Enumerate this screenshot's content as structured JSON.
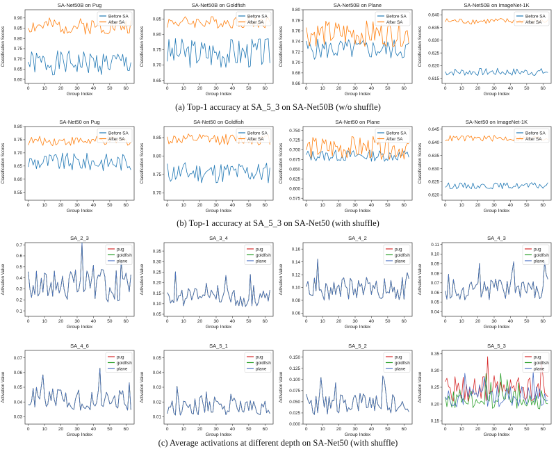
{
  "captions": {
    "a": "(a) Top-1 accuracy at SA_5_3 on SA-Net50B (w/o shuffle)",
    "b": "(b) Top-1 accuracy at SA_5_3 on SA-Net50 (with shuffle)",
    "c": "(c) Average activations at different depth on SA-Net50 (with shuffle)"
  },
  "colors": {
    "before": "#1f77b4",
    "after": "#ff7f0e",
    "pug": "#d62728",
    "goldfish": "#2ca02c",
    "plane": "#4a6fc4"
  },
  "chart_data": [
    {
      "id": "a1",
      "type": "line",
      "title": "SA-Net50B on Pug",
      "xlabel": "Group Index",
      "ylabel": "Classification Scores",
      "xlim": [
        -2,
        65
      ],
      "ylim": [
        0.58,
        0.94
      ],
      "xticks": [
        0,
        10,
        20,
        30,
        40,
        50,
        60
      ],
      "yticks": [
        0.6,
        0.65,
        0.7,
        0.75,
        0.8,
        0.85,
        0.9
      ],
      "ydec": 2,
      "legend": "top-right",
      "series": [
        {
          "name": "Before SA",
          "color": "#1f77b4",
          "gen": [
            0.68,
            0.06,
            1
          ]
        },
        {
          "name": "After SA",
          "color": "#ff7f0e",
          "gen": [
            0.86,
            0.04,
            2
          ]
        }
      ]
    },
    {
      "id": "a2",
      "type": "line",
      "title": "SA-Net50B on Goldfish",
      "xlabel": "Group Index",
      "ylabel": "Classification Scores",
      "xlim": [
        -2,
        65
      ],
      "ylim": [
        0.64,
        0.88
      ],
      "xticks": [
        0,
        10,
        20,
        30,
        40,
        50,
        60
      ],
      "yticks": [
        0.65,
        0.7,
        0.75,
        0.8,
        0.85
      ],
      "ydec": 2,
      "legend": "top-right",
      "series": [
        {
          "name": "Before SA",
          "color": "#1f77b4",
          "gen": [
            0.74,
            0.05,
            3
          ]
        },
        {
          "name": "After SA",
          "color": "#ff7f0e",
          "gen": [
            0.84,
            0.02,
            4
          ]
        }
      ]
    },
    {
      "id": "a3",
      "type": "line",
      "title": "SA-Net50B on Plane",
      "xlabel": "Group Index",
      "ylabel": "Classification Scores",
      "xlim": [
        -2,
        65
      ],
      "ylim": [
        0.66,
        0.8
      ],
      "xticks": [
        0,
        10,
        20,
        30,
        40,
        50,
        60
      ],
      "yticks": [
        0.66,
        0.68,
        0.7,
        0.72,
        0.74,
        0.76,
        0.78,
        0.8
      ],
      "ydec": 2,
      "legend": "top-right",
      "series": [
        {
          "name": "Before SA",
          "color": "#1f77b4",
          "gen": [
            0.725,
            0.02,
            5
          ]
        },
        {
          "name": "After SA",
          "color": "#ff7f0e",
          "gen": [
            0.755,
            0.025,
            6
          ]
        }
      ]
    },
    {
      "id": "a4",
      "type": "line",
      "title": "SA-Net50B on ImageNet-1K",
      "xlabel": "Group Index",
      "ylabel": "Classification Scores",
      "xlim": [
        -2,
        65
      ],
      "ylim": [
        0.613,
        0.642
      ],
      "xticks": [
        0,
        10,
        20,
        30,
        40,
        50,
        60
      ],
      "yticks": [
        0.615,
        0.62,
        0.625,
        0.63,
        0.635,
        0.64
      ],
      "ydec": 3,
      "legend": "top-right",
      "series": [
        {
          "name": "Before SA",
          "color": "#1f77b4",
          "gen": [
            0.6175,
            0.0015,
            7
          ]
        },
        {
          "name": "After SA",
          "color": "#ff7f0e",
          "gen": [
            0.6375,
            0.0012,
            8
          ]
        }
      ]
    },
    {
      "id": "b1",
      "type": "line",
      "title": "SA-Net50 on Pug",
      "xlabel": "Group Index",
      "ylabel": "Classification Scores",
      "xlim": [
        -2,
        65
      ],
      "ylim": [
        0.52,
        0.8
      ],
      "xticks": [
        0,
        10,
        20,
        30,
        40,
        50,
        60
      ],
      "yticks": [
        0.55,
        0.6,
        0.65,
        0.7,
        0.75,
        0.8
      ],
      "ydec": 2,
      "legend": "top-right",
      "series": [
        {
          "name": "Before SA",
          "color": "#1f77b4",
          "gen": [
            0.665,
            0.035,
            9
          ]
        },
        {
          "name": "After SA",
          "color": "#ff7f0e",
          "gen": [
            0.745,
            0.018,
            10
          ]
        }
      ]
    },
    {
      "id": "b2",
      "type": "line",
      "title": "SA-Net50 on Goldfish",
      "xlabel": "Group Index",
      "ylabel": "Classification Scores",
      "xlim": [
        -2,
        65
      ],
      "ylim": [
        0.68,
        0.88
      ],
      "xticks": [
        0,
        10,
        20,
        30,
        40,
        50,
        60
      ],
      "yticks": [
        0.7,
        0.75,
        0.8,
        0.85
      ],
      "ydec": 2,
      "legend": "top-right",
      "series": [
        {
          "name": "Before SA",
          "color": "#1f77b4",
          "gen": [
            0.755,
            0.03,
            11
          ]
        },
        {
          "name": "After SA",
          "color": "#ff7f0e",
          "gen": [
            0.845,
            0.015,
            12
          ]
        }
      ]
    },
    {
      "id": "b3",
      "type": "line",
      "title": "SA-Net50 on Plane",
      "xlabel": "Group Index",
      "ylabel": "Classification Scores",
      "xlim": [
        -2,
        65
      ],
      "ylim": [
        0.57,
        0.76
      ],
      "xticks": [
        0,
        10,
        20,
        30,
        40,
        50,
        60
      ],
      "yticks": [
        0.575,
        0.6,
        0.625,
        0.65,
        0.675,
        0.7,
        0.725,
        0.75
      ],
      "ydec": 3,
      "legend": "top-right",
      "series": [
        {
          "name": "Before SA",
          "color": "#1f77b4",
          "gen": [
            0.685,
            0.015,
            13
          ]
        },
        {
          "name": "After SA",
          "color": "#ff7f0e",
          "gen": [
            0.705,
            0.03,
            14
          ]
        }
      ]
    },
    {
      "id": "b4",
      "type": "line",
      "title": "SA-Net50 on ImageNet-1K",
      "xlabel": "Group Index",
      "ylabel": "Classification Scores",
      "xlim": [
        -2,
        65
      ],
      "ylim": [
        0.618,
        0.646
      ],
      "xticks": [
        0,
        10,
        20,
        30,
        40,
        50,
        60
      ],
      "yticks": [
        0.62,
        0.625,
        0.63,
        0.635,
        0.64,
        0.645
      ],
      "ydec": 3,
      "legend": "top-right",
      "series": [
        {
          "name": "Before SA",
          "color": "#1f77b4",
          "gen": [
            0.6235,
            0.0012,
            15
          ]
        },
        {
          "name": "After SA",
          "color": "#ff7f0e",
          "gen": [
            0.6415,
            0.0012,
            16
          ]
        }
      ]
    },
    {
      "id": "c1",
      "type": "line",
      "title": "SA_2_3",
      "xlabel": "Group Index",
      "ylabel": "Activation Value",
      "xlim": [
        -2,
        65
      ],
      "ylim": [
        0.05,
        0.72
      ],
      "xticks": [
        0,
        10,
        20,
        30,
        40,
        50,
        60
      ],
      "yticks": [
        0.1,
        0.2,
        0.3,
        0.4,
        0.5,
        0.6,
        0.7
      ],
      "ydec": 1,
      "legend": "top-right",
      "series": [
        {
          "name": "pug",
          "color": "#d62728",
          "gen": [
            0.33,
            0.15,
            17,
            1
          ]
        },
        {
          "name": "goldfish",
          "color": "#2ca02c",
          "gen": [
            0.33,
            0.15,
            17,
            1
          ]
        },
        {
          "name": "plane",
          "color": "#4a6fc4",
          "gen": [
            0.33,
            0.15,
            17,
            1
          ]
        }
      ]
    },
    {
      "id": "c2",
      "type": "line",
      "title": "SA_3_4",
      "xlabel": "Group Index",
      "ylabel": "Activation Value",
      "xlim": [
        -2,
        65
      ],
      "ylim": [
        0.04,
        0.39
      ],
      "xticks": [
        0,
        10,
        20,
        30,
        40,
        50,
        60
      ],
      "yticks": [
        0.05,
        0.1,
        0.15,
        0.2,
        0.25,
        0.3,
        0.35
      ],
      "ydec": 2,
      "legend": "top-right",
      "series": [
        {
          "name": "pug",
          "color": "#d62728",
          "gen": [
            0.13,
            0.045,
            18,
            0.4
          ]
        },
        {
          "name": "goldfish",
          "color": "#2ca02c",
          "gen": [
            0.13,
            0.045,
            18,
            0.4
          ]
        },
        {
          "name": "plane",
          "color": "#4a6fc4",
          "gen": [
            0.13,
            0.045,
            18,
            0.4
          ]
        }
      ]
    },
    {
      "id": "c3",
      "type": "line",
      "title": "SA_4_2",
      "xlabel": "Group Index",
      "ylabel": "Activation Value",
      "xlim": [
        -2,
        65
      ],
      "ylim": [
        0.055,
        0.17
      ],
      "xticks": [
        0,
        10,
        20,
        30,
        40,
        50,
        60
      ],
      "yticks": [
        0.06,
        0.08,
        0.1,
        0.12,
        0.14,
        0.16
      ],
      "ydec": 2,
      "legend": "top-right",
      "series": [
        {
          "name": "pug",
          "color": "#d62728",
          "gen": [
            0.098,
            0.018,
            19,
            0.3
          ]
        },
        {
          "name": "goldfish",
          "color": "#2ca02c",
          "gen": [
            0.098,
            0.018,
            19,
            0.3
          ]
        },
        {
          "name": "plane",
          "color": "#4a6fc4",
          "gen": [
            0.098,
            0.018,
            19,
            0.3
          ]
        }
      ]
    },
    {
      "id": "c4",
      "type": "line",
      "title": "SA_4_3",
      "xlabel": "Group Index",
      "ylabel": "Activation Value",
      "xlim": [
        -2,
        65
      ],
      "ylim": [
        0.035,
        0.112
      ],
      "xticks": [
        0,
        10,
        20,
        30,
        40,
        50,
        60
      ],
      "yticks": [
        0.04,
        0.05,
        0.06,
        0.07,
        0.08,
        0.09,
        0.1,
        0.11
      ],
      "ydec": 2,
      "legend": "top-right",
      "series": [
        {
          "name": "pug",
          "color": "#d62728",
          "gen": [
            0.063,
            0.011,
            20,
            0.3
          ]
        },
        {
          "name": "goldfish",
          "color": "#2ca02c",
          "gen": [
            0.063,
            0.011,
            20,
            0.3
          ]
        },
        {
          "name": "plane",
          "color": "#4a6fc4",
          "gen": [
            0.063,
            0.011,
            20,
            0.3
          ]
        }
      ]
    },
    {
      "id": "d1",
      "type": "line",
      "title": "SA_4_6",
      "xlabel": "Group Index",
      "ylabel": "Activation Value",
      "xlim": [
        -2,
        65
      ],
      "ylim": [
        0.025,
        0.075
      ],
      "xticks": [
        0,
        10,
        20,
        30,
        40,
        50,
        60
      ],
      "yticks": [
        0.03,
        0.04,
        0.05,
        0.06,
        0.07
      ],
      "ydec": 2,
      "legend": "top-right",
      "series": [
        {
          "name": "pug",
          "color": "#d62728",
          "gen": [
            0.042,
            0.008,
            21,
            0.3
          ]
        },
        {
          "name": "goldfish",
          "color": "#2ca02c",
          "gen": [
            0.042,
            0.008,
            21,
            0.3
          ]
        },
        {
          "name": "plane",
          "color": "#4a6fc4",
          "gen": [
            0.042,
            0.008,
            21,
            0.3
          ]
        }
      ]
    },
    {
      "id": "d2",
      "type": "line",
      "title": "SA_5_1",
      "xlabel": "Group Index",
      "ylabel": "Activation Value",
      "xlim": [
        -2,
        65
      ],
      "ylim": [
        0.005,
        0.055
      ],
      "xticks": [
        0,
        10,
        20,
        30,
        40,
        50,
        60
      ],
      "yticks": [
        0.01,
        0.02,
        0.03,
        0.04,
        0.05
      ],
      "ydec": 2,
      "legend": "top-right",
      "series": [
        {
          "name": "pug",
          "color": "#d62728",
          "gen": [
            0.017,
            0.006,
            22,
            0.3
          ]
        },
        {
          "name": "goldfish",
          "color": "#2ca02c",
          "gen": [
            0.017,
            0.006,
            22,
            0.3
          ]
        },
        {
          "name": "plane",
          "color": "#4a6fc4",
          "gen": [
            0.017,
            0.006,
            22,
            0.3
          ]
        }
      ]
    },
    {
      "id": "d3",
      "type": "line",
      "title": "SA_5_2",
      "xlabel": "Group Index",
      "ylabel": "Activation Value",
      "xlim": [
        -2,
        65
      ],
      "ylim": [
        0.0,
        0.165
      ],
      "xticks": [
        0,
        10,
        20,
        30,
        40,
        50,
        60
      ],
      "yticks": [
        0.0,
        0.025,
        0.05,
        0.075,
        0.1,
        0.125,
        0.15
      ],
      "ydec": 3,
      "legend": "top-right",
      "series": [
        {
          "name": "pug",
          "color": "#d62728",
          "gen": [
            0.045,
            0.025,
            23,
            0.1
          ]
        },
        {
          "name": "goldfish",
          "color": "#2ca02c",
          "gen": [
            0.045,
            0.025,
            23,
            0.1
          ]
        },
        {
          "name": "plane",
          "color": "#4a6fc4",
          "gen": [
            0.045,
            0.025,
            23,
            0.1
          ]
        }
      ]
    },
    {
      "id": "d4",
      "type": "line",
      "title": "SA_5_3",
      "xlabel": "Group Index",
      "ylabel": "Activation Value",
      "xlim": [
        -2,
        65
      ],
      "ylim": [
        0.14,
        0.36
      ],
      "xticks": [
        0,
        10,
        20,
        30,
        40,
        50,
        60
      ],
      "yticks": [
        0.15,
        0.2,
        0.25,
        0.3,
        0.35
      ],
      "ydec": 2,
      "legend": "top-right",
      "series": [
        {
          "name": "pug",
          "color": "#d62728",
          "gen": [
            0.245,
            0.04,
            24,
            5
          ]
        },
        {
          "name": "goldfish",
          "color": "#2ca02c",
          "gen": [
            0.215,
            0.03,
            25,
            5
          ]
        },
        {
          "name": "plane",
          "color": "#4a6fc4",
          "gen": [
            0.225,
            0.035,
            26,
            5
          ]
        }
      ]
    }
  ]
}
